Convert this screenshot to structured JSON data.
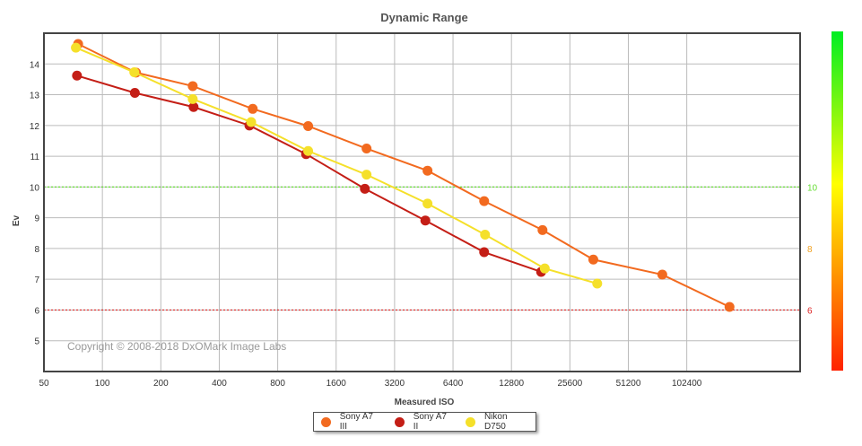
{
  "chart_data": {
    "type": "line",
    "title": "Dynamic Range",
    "xlabel": "Measured ISO",
    "ylabel": "Ev",
    "xscale": "log2",
    "xlim": [
      50,
      300000
    ],
    "ylim": [
      4,
      15
    ],
    "xticks": [
      "50",
      "100",
      "200",
      "400",
      "800",
      "1600",
      "3200",
      "6400",
      "12800",
      "25600",
      "51200",
      "102400"
    ],
    "xtick_values": [
      50,
      100,
      200,
      400,
      800,
      1600,
      3200,
      6400,
      12800,
      25600,
      51200,
      102400
    ],
    "yticks": [
      5,
      6,
      7,
      8,
      9,
      10,
      11,
      12,
      13,
      14
    ],
    "grid": true,
    "copyright": "Copyright © 2008-2018 DxOMark Image Labs",
    "reference_lines": [
      {
        "value": 10,
        "color": "#66dd33"
      },
      {
        "value": 6,
        "color": "#dd2222"
      }
    ],
    "colorbar": {
      "labels": [
        {
          "value": 10,
          "text": "10",
          "color": "#66dd33"
        },
        {
          "value": 8,
          "text": "8",
          "color": "#f0a020"
        },
        {
          "value": 6,
          "text": "6",
          "color": "#dd2222"
        }
      ]
    },
    "legend_position": "bottom-center",
    "series": [
      {
        "name": "Sony A7 III",
        "color": "#f26a1f",
        "x": [
          75,
          149,
          292,
          595,
          1148,
          2295,
          4730,
          9260,
          18500,
          33800,
          76600,
          170000
        ],
        "y": [
          14.65,
          13.72,
          13.28,
          12.54,
          11.98,
          11.25,
          10.53,
          9.54,
          8.6,
          7.64,
          7.15,
          6.1
        ]
      },
      {
        "name": "Sony A7 II",
        "color": "#c41e16",
        "x": [
          74,
          147,
          295,
          572,
          1120,
          2250,
          4610,
          9260,
          18200
        ],
        "y": [
          13.62,
          13.06,
          12.6,
          12.0,
          11.07,
          9.94,
          8.91,
          7.88,
          7.24
        ]
      },
      {
        "name": "Nikon D750",
        "color": "#f5e02a",
        "x": [
          73,
          146,
          292,
          584,
          1148,
          2295,
          4730,
          9360,
          19000,
          35400
        ],
        "y": [
          14.53,
          13.73,
          12.86,
          12.11,
          11.17,
          10.4,
          9.46,
          8.45,
          7.35,
          6.86
        ]
      }
    ]
  }
}
